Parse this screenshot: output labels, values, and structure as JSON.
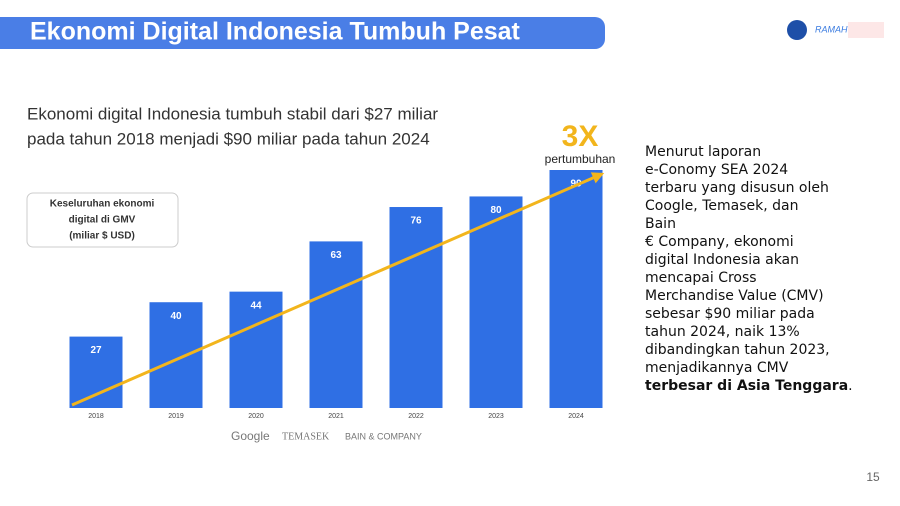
{
  "header": {
    "title": "Ekonomi Digital Indonesia Tumbuh Pesat",
    "logo": "RAMAH"
  },
  "chart_data": {
    "type": "bar",
    "title_lines": [
      "Ekonomi digital Indonesia tumbuh stabil dari $27 miliar",
      "pada tahun 2018 menjadi $90 miliar pada tahun 2024"
    ],
    "legend_box": [
      "Keseluruhan ekonomi",
      "digital di GMV",
      "(miliar $ USD)"
    ],
    "annotation": {
      "big": "3X",
      "small": "pertumbuhan"
    },
    "sources": [
      "Google",
      "TEMASEK",
      "BAIN & COMPANY"
    ],
    "categories": [
      "2018",
      "2019",
      "2020",
      "2021",
      "2022",
      "2023",
      "2024"
    ],
    "values": [
      27,
      40,
      44,
      63,
      76,
      80,
      90
    ],
    "color": "#2f6fe4",
    "trend_color": "#f2b51c"
  },
  "body": {
    "lines": [
      "Menurut laporan",
      "e-Conomy SEA 2024",
      "terbaru yang disusun oleh",
      "Coogle, Temasek, dan",
      "Bain",
      "€ Company, ekonomi",
      "digital Indonesia akan",
      "mencapai Cross",
      "Merchandise Value (CMV)",
      "sebesar $90 miliar pada",
      "tahun 2024, naik 13%",
      "dibandingkan tahun 2023,",
      "menjadikannya CMV"
    ],
    "bold": "terbesar di Asia Tenggara",
    "end": "."
  },
  "page_number": "15"
}
